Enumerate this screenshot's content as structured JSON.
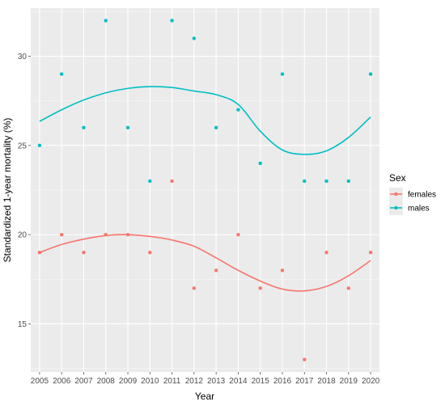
{
  "chart_data": {
    "type": "scatter",
    "xlabel": "Year",
    "ylabel": "Standardized 1-year mortality (%)",
    "x": [
      2005,
      2006,
      2007,
      2008,
      2009,
      2010,
      2011,
      2012,
      2013,
      2014,
      2015,
      2016,
      2017,
      2018,
      2019,
      2020
    ],
    "x_ticks": [
      2005,
      2006,
      2007,
      2008,
      2009,
      2010,
      2011,
      2012,
      2013,
      2014,
      2015,
      2016,
      2017,
      2018,
      2019,
      2020
    ],
    "y_ticks": [
      15,
      20,
      25,
      30
    ],
    "xlim": [
      2004.6,
      2020.4
    ],
    "ylim": [
      12.3,
      32.7
    ],
    "grid": true,
    "legend_title": "Sex",
    "legend_position": "right",
    "smoothing": "loess curve per series",
    "series": [
      {
        "name": "females",
        "color": "#F8766D",
        "values": [
          19,
          20,
          19,
          20,
          20,
          19,
          23,
          17,
          18,
          20,
          17,
          18,
          13,
          19,
          17,
          19
        ],
        "smooth": [
          19.0,
          19.45,
          19.75,
          19.95,
          20.0,
          19.9,
          19.7,
          19.35,
          18.7,
          18.0,
          17.4,
          16.95,
          16.85,
          17.1,
          17.7,
          18.55
        ]
      },
      {
        "name": "males",
        "color": "#00BFC4",
        "values": [
          25,
          29,
          26,
          32,
          26,
          23,
          32,
          31,
          26,
          27,
          24,
          29,
          23,
          23,
          23,
          29
        ],
        "smooth": [
          26.35,
          27.0,
          27.55,
          27.95,
          28.2,
          28.3,
          28.25,
          28.05,
          27.85,
          27.3,
          25.8,
          24.75,
          24.5,
          24.7,
          25.45,
          26.6
        ]
      }
    ]
  }
}
